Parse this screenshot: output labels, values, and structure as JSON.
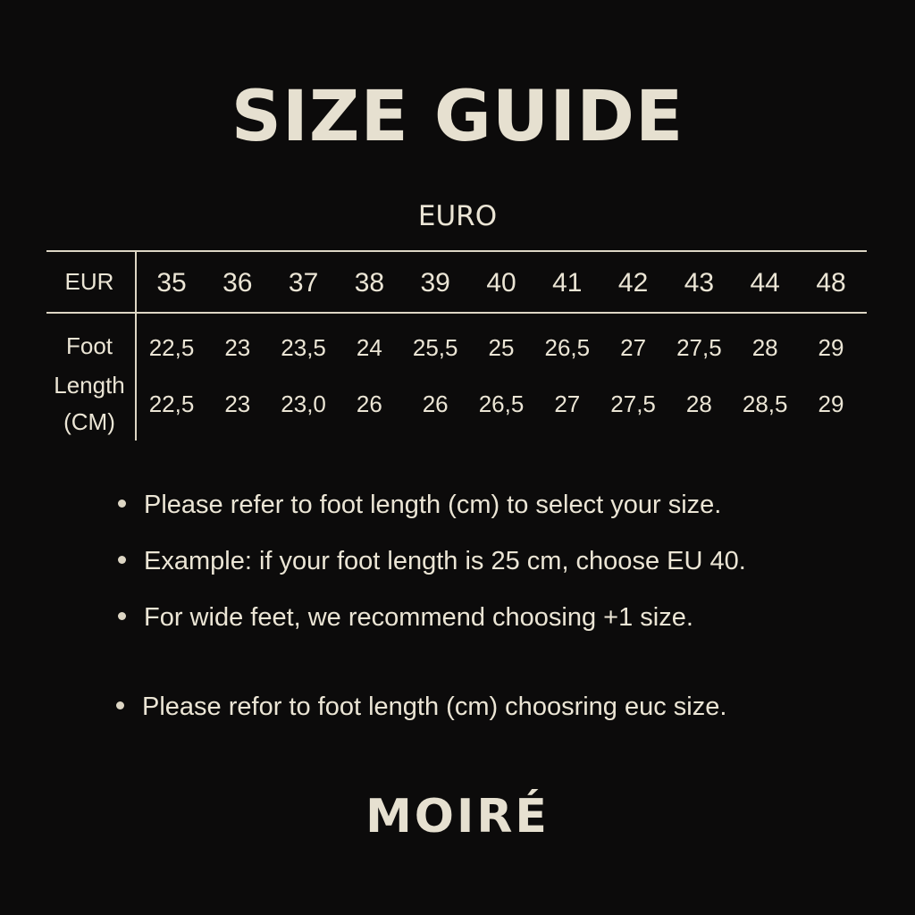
{
  "title": "SIZE GUIDE",
  "subtitle": "EURO",
  "table": {
    "header_label": "EUR",
    "sizes": [
      "35",
      "36",
      "37",
      "38",
      "39",
      "40",
      "41",
      "42",
      "43",
      "44",
      "48"
    ],
    "row_label": [
      "Foot",
      "Length",
      "(CM)"
    ],
    "row1": [
      "22,5",
      "23",
      "23,5",
      "24",
      "25,5",
      "25",
      "26,5",
      "27",
      "27,5",
      "28",
      "29"
    ],
    "row2": [
      "22,5",
      "23",
      "23,0",
      "26",
      "26",
      "26,5",
      "27",
      "27,5",
      "28",
      "28,5",
      "29"
    ]
  },
  "notes": [
    "Please refer to foot length (cm) to select your size.",
    "Example: if your foot length is 25 cm, choose EU 40.",
    "For wide feet, we recommend choosing +1 size.",
    "Please refor to foot length (cm) choosring euc size."
  ],
  "brand": "MOIRÉ",
  "colors": {
    "background": "#0c0b0b",
    "text": "#ebe5d5"
  }
}
